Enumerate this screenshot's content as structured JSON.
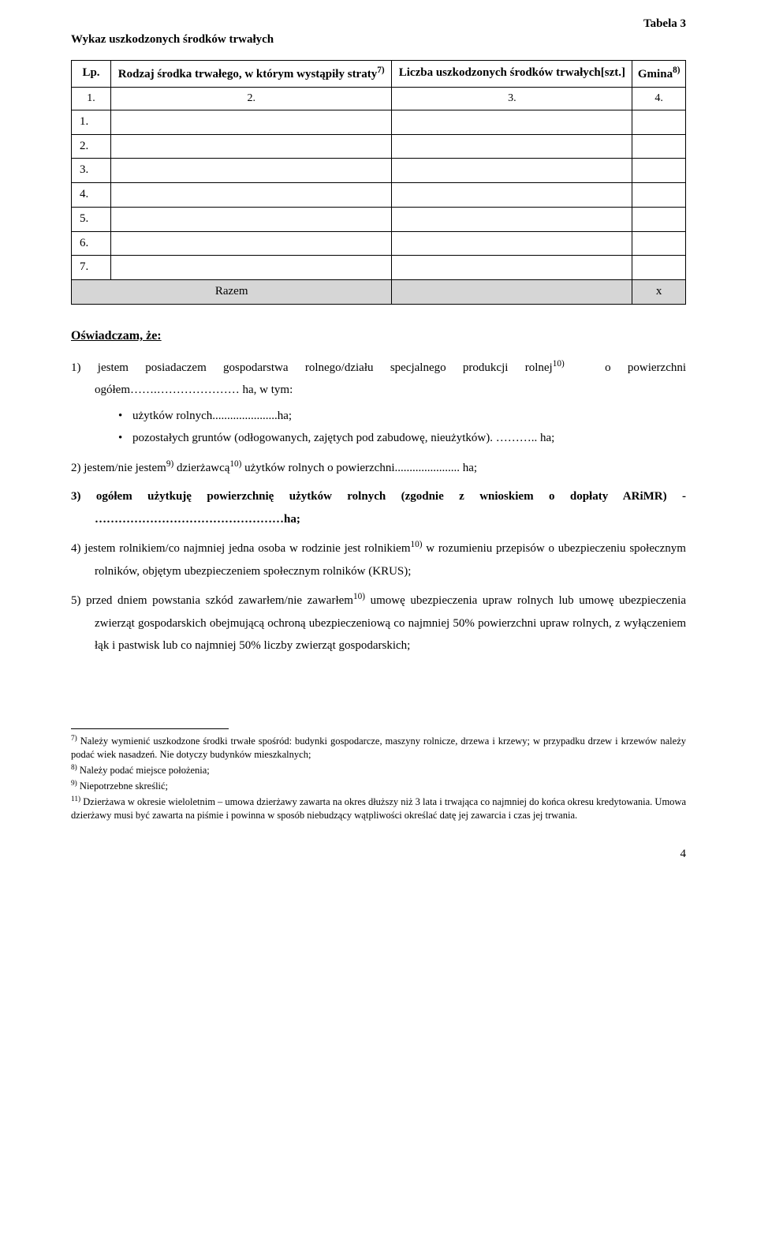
{
  "header": {
    "table_label": "Tabela 3",
    "title": "Wykaz uszkodzonych środków trwałych"
  },
  "table": {
    "columns": {
      "lp": "Lp.",
      "rodzaj": "Rodzaj środka trwałego, w którym wystąpiły straty",
      "rodzaj_sup": "7)",
      "liczba": "Liczba uszkodzonych środków trwałych[szt.]",
      "gmina": "Gmina",
      "gmina_sup": "8)"
    },
    "header_nums": {
      "c1": "1.",
      "c2": "2.",
      "c3": "3.",
      "c4": "4."
    },
    "rows": [
      {
        "lp": "1."
      },
      {
        "lp": "2."
      },
      {
        "lp": "3."
      },
      {
        "lp": "4."
      },
      {
        "lp": "5."
      },
      {
        "lp": "6."
      },
      {
        "lp": "7."
      }
    ],
    "razem": {
      "label": "Razem",
      "x": "x"
    }
  },
  "declaration": {
    "title": "Oświadczam, że:",
    "item1_a": "1)   jestem  posiadaczem  gospodarstwa  rolnego/działu  specjalnego  produkcji  rolnej",
    "item1_sup": "10)",
    "item1_b": "o powierzchni ogółem…….…………………  ha, w tym:",
    "bullet1": "użytków rolnych......................ha;",
    "bullet2": "pozostałych gruntów (odłogowanych, zajętych pod zabudowę, nieużytków). ……….. ha;",
    "item2_a": "2)   jestem/nie jestem",
    "item2_sup1": "9)",
    "item2_b": " dzierżawcą",
    "item2_sup2": "10)",
    "item2_c": " użytków rolnych o powierzchni...................... ha;",
    "item3": "3)   ogółem  użytkuję  powierzchnię  użytków  rolnych  (zgodnie  z  wnioskiem  o  dopłaty ARiMR) - …………………………………………ha;",
    "item4_a": "4)   jestem  rolnikiem/co  najmniej  jedna  osoba  w rodzinie  jest  rolnikiem",
    "item4_sup": "10)",
    "item4_b": "  w rozumieniu przepisów o ubezpieczeniu społecznym rolników, objętym ubezpieczeniem społecznym rolników (KRUS);",
    "item5_a": "5)   przed dniem powstania szkód zawarłem/nie zawarłem",
    "item5_sup": "10)",
    "item5_b": " umowę ubezpieczenia upraw rolnych  lub  umowę  ubezpieczenia  zwierząt  gospodarskich  obejmującą  ochroną ubezpieczeniową  co  najmniej  50%  powierzchni  upraw  rolnych,  z  wyłączeniem  łąk i pastwisk lub co najmniej 50% liczby zwierząt gospodarskich;"
  },
  "footnotes": {
    "f7_sup": "7)",
    "f7": " Należy wymienić uszkodzone środki trwałe spośród: budynki gospodarcze, maszyny rolnicze, drzewa i krzewy; w przypadku drzew i krzewów należy podać wiek nasadzeń. Nie dotyczy budynków mieszkalnych;",
    "f8_sup": "8)",
    "f8": "  Należy podać miejsce położenia;",
    "f9_sup": "9)",
    "f9": " Niepotrzebne skreślić;",
    "f11_sup": "11)",
    "f11": " Dzierżawa w okresie wieloletnim – umowa dzierżawy zawarta na okres dłuższy niż 3 lata i trwająca co najmniej do końca okresu kredytowania. Umowa dzierżawy musi być zawarta na piśmie i powinna w sposób niebudzący wątpliwości określać datę jej zawarcia i czas jej trwania."
  },
  "page_number": "4"
}
